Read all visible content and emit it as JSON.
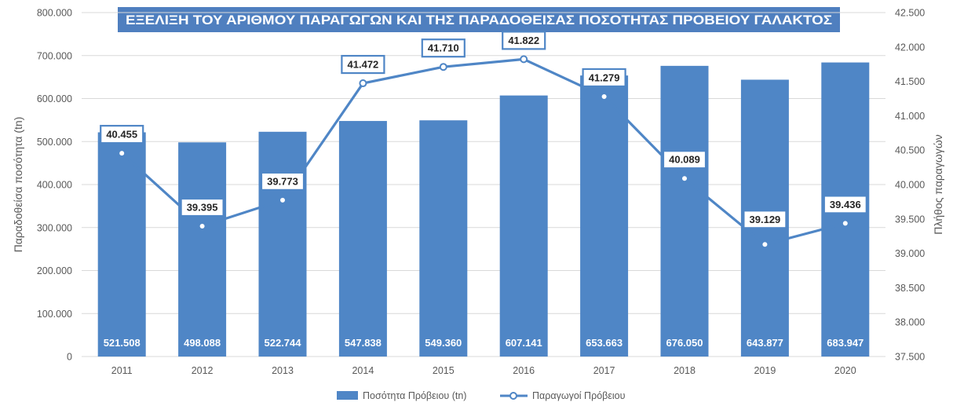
{
  "chart_data": {
    "type": "bar",
    "title": "ΕΞΕΛΙΞΗ ΤΟΥ ΑΡΙΘΜΟΥ ΠΑΡΑΓΩΓΩΝ ΚΑΙ ΤΗΣ ΠΑΡΑΔΟΘΕΙΣΑΣ ΠΟΣΟΤΗΤΑΣ ΠΡΟΒΕΙΟΥ ΓΑΛΑΚΤΟΣ",
    "categories": [
      "2011",
      "2012",
      "2013",
      "2014",
      "2015",
      "2016",
      "2017",
      "2018",
      "2019",
      "2020"
    ],
    "ylabel": "Παραδοθείσα ποσότητα (tn)",
    "y2label": "Πλήθος παραγωγών",
    "ylim": [
      0,
      800000
    ],
    "y2lim": [
      37500,
      42500
    ],
    "yticks": [
      "0",
      "100.000",
      "200.000",
      "300.000",
      "400.000",
      "500.000",
      "600.000",
      "700.000",
      "800.000"
    ],
    "y2ticks": [
      "37.500",
      "38.000",
      "38.500",
      "39.000",
      "39.500",
      "40.000",
      "40.500",
      "41.000",
      "41.500",
      "42.000",
      "42.500"
    ],
    "grid": true,
    "legend_position": "bottom",
    "series": [
      {
        "name": "Ποσότητα Πρόβειου (tn)",
        "type": "bar",
        "axis": "left",
        "color": "#4f86c6",
        "values": [
          521508,
          498088,
          522744,
          547838,
          549360,
          607141,
          653663,
          676050,
          643877,
          683947
        ],
        "labels": [
          "521.508",
          "498.088",
          "522.744",
          "547.838",
          "549.360",
          "607.141",
          "653.663",
          "676.050",
          "643.877",
          "683.947"
        ]
      },
      {
        "name": "Παραγωγοί Πρόβειου",
        "type": "line",
        "axis": "right",
        "color": "#4f86c6",
        "values": [
          40455,
          39395,
          39773,
          41472,
          41710,
          41822,
          41279,
          40089,
          39129,
          39436
        ],
        "labels": [
          "40.455",
          "39.395",
          "39.773",
          "41.472",
          "41.710",
          "41.822",
          "41.279",
          "40.089",
          "39.129",
          "39.436"
        ]
      }
    ]
  }
}
